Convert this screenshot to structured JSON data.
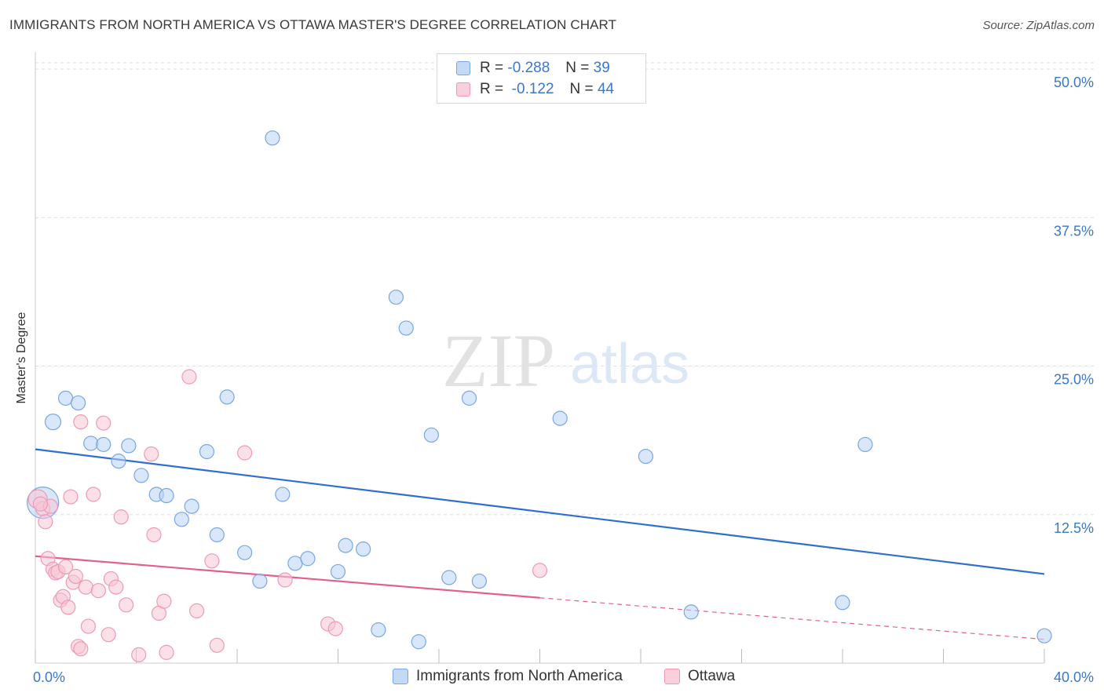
{
  "title": "IMMIGRANTS FROM NORTH AMERICA VS OTTAWA MASTER'S DEGREE CORRELATION CHART",
  "source": "Source: ZipAtlas.com",
  "watermark": {
    "zip": "ZIP",
    "atlas": "atlas"
  },
  "legend": {
    "series1": {
      "r_label": "R =",
      "r_value": "-0.288",
      "n_label": "N =",
      "n_value": "39"
    },
    "series2": {
      "r_label": "R =",
      "r_value": "-0.122",
      "n_label": "N =",
      "n_value": "44"
    }
  },
  "colors": {
    "blue_fill": "#b9d3f5",
    "blue_stroke": "#7aa6e0",
    "blue_line": "#2f6fd0",
    "pink_fill": "#f8c6d6",
    "pink_stroke": "#ee9ab5",
    "pink_line": "#e0608e",
    "grid": "#dddddd",
    "tick_label": "#3a78c9"
  },
  "chart_data": {
    "type": "scatter",
    "ylabel": "Master's Degree",
    "xlim": [
      0,
      40
    ],
    "ylim": [
      0,
      50
    ],
    "x_tick_labels": [
      "0.0%",
      "40.0%"
    ],
    "y_ticks": [
      12.5,
      25.0,
      37.5,
      50.0
    ],
    "y_tick_labels": [
      "12.5%",
      "25.0%",
      "37.5%",
      "50.0%"
    ],
    "grid": true,
    "legend_position": "top-center",
    "series": [
      {
        "name": "Immigrants from North America",
        "color": "#b9d3f5",
        "points": [
          [
            0.3,
            13.5,
            20
          ],
          [
            0.7,
            20.3,
            10
          ],
          [
            1.2,
            22.3,
            9
          ],
          [
            1.7,
            21.9,
            9
          ],
          [
            2.2,
            18.5,
            9
          ],
          [
            2.7,
            18.4,
            9
          ],
          [
            3.3,
            17.0,
            9
          ],
          [
            3.7,
            18.3,
            9
          ],
          [
            4.2,
            15.8,
            9
          ],
          [
            4.8,
            14.2,
            9
          ],
          [
            5.2,
            14.1,
            9
          ],
          [
            5.8,
            12.1,
            9
          ],
          [
            6.2,
            13.2,
            9
          ],
          [
            6.8,
            17.8,
            9
          ],
          [
            7.2,
            10.8,
            9
          ],
          [
            7.6,
            22.4,
            9
          ],
          [
            8.3,
            9.3,
            9
          ],
          [
            8.9,
            6.9,
            9
          ],
          [
            9.4,
            44.2,
            9
          ],
          [
            9.8,
            14.2,
            9
          ],
          [
            10.3,
            8.4,
            9
          ],
          [
            10.8,
            8.8,
            9
          ],
          [
            12.0,
            7.7,
            9
          ],
          [
            12.3,
            9.9,
            9
          ],
          [
            13.0,
            9.6,
            9
          ],
          [
            13.6,
            2.8,
            9
          ],
          [
            14.3,
            30.8,
            9
          ],
          [
            14.7,
            28.2,
            9
          ],
          [
            15.2,
            1.8,
            9
          ],
          [
            15.7,
            19.2,
            9
          ],
          [
            16.4,
            7.2,
            9
          ],
          [
            17.6,
            6.9,
            9
          ],
          [
            17.2,
            22.3,
            9
          ],
          [
            20.8,
            20.6,
            9
          ],
          [
            24.2,
            17.4,
            9
          ],
          [
            26.0,
            4.3,
            9
          ],
          [
            32.0,
            5.1,
            9
          ],
          [
            32.9,
            18.4,
            9
          ],
          [
            40.0,
            2.3,
            9
          ]
        ],
        "trend": {
          "x": [
            0,
            40
          ],
          "y": [
            18.0,
            7.5
          ],
          "style": "solid"
        }
      },
      {
        "name": "Ottawa",
        "color": "#f8c6d6",
        "points": [
          [
            0.1,
            13.8,
            12
          ],
          [
            0.3,
            13.0,
            9
          ],
          [
            0.4,
            11.9,
            9
          ],
          [
            0.5,
            8.8,
            9
          ],
          [
            0.6,
            13.2,
            9
          ],
          [
            0.7,
            7.9,
            9
          ],
          [
            0.8,
            7.6,
            9
          ],
          [
            0.9,
            7.7,
            9
          ],
          [
            1.0,
            5.3,
            9
          ],
          [
            1.1,
            5.6,
            9
          ],
          [
            1.2,
            8.1,
            9
          ],
          [
            1.3,
            4.7,
            9
          ],
          [
            1.4,
            14.0,
            9
          ],
          [
            1.5,
            6.8,
            9
          ],
          [
            1.6,
            7.3,
            9
          ],
          [
            1.7,
            1.4,
            9
          ],
          [
            1.8,
            1.2,
            9
          ],
          [
            1.8,
            20.3,
            9
          ],
          [
            2.0,
            6.4,
            9
          ],
          [
            2.1,
            3.1,
            9
          ],
          [
            2.3,
            14.2,
            9
          ],
          [
            2.5,
            6.1,
            9
          ],
          [
            2.7,
            20.2,
            9
          ],
          [
            2.9,
            2.4,
            9
          ],
          [
            3.0,
            7.1,
            9
          ],
          [
            3.2,
            6.4,
            9
          ],
          [
            3.4,
            12.3,
            9
          ],
          [
            3.6,
            4.9,
            9
          ],
          [
            4.1,
            0.7,
            9
          ],
          [
            4.6,
            17.6,
            9
          ],
          [
            4.7,
            10.8,
            9
          ],
          [
            4.9,
            4.2,
            9
          ],
          [
            5.1,
            5.2,
            9
          ],
          [
            5.2,
            0.9,
            9
          ],
          [
            6.1,
            24.1,
            9
          ],
          [
            6.4,
            4.4,
            9
          ],
          [
            7.0,
            8.6,
            9
          ],
          [
            7.2,
            1.5,
            9
          ],
          [
            8.3,
            17.7,
            9
          ],
          [
            9.9,
            7.0,
            9
          ],
          [
            11.6,
            3.3,
            9
          ],
          [
            11.9,
            2.9,
            9
          ],
          [
            20.0,
            7.8,
            9
          ],
          [
            0.2,
            13.4,
            9
          ]
        ],
        "trend": {
          "x": [
            0,
            20
          ],
          "y": [
            9.0,
            5.5
          ],
          "style": "solid"
        },
        "trend_extension": {
          "x": [
            20,
            40
          ],
          "y": [
            5.5,
            2.0
          ],
          "style": "dashed"
        }
      }
    ]
  },
  "bottom_legend": {
    "item1": "Immigrants from North America",
    "item2": "Ottawa"
  }
}
